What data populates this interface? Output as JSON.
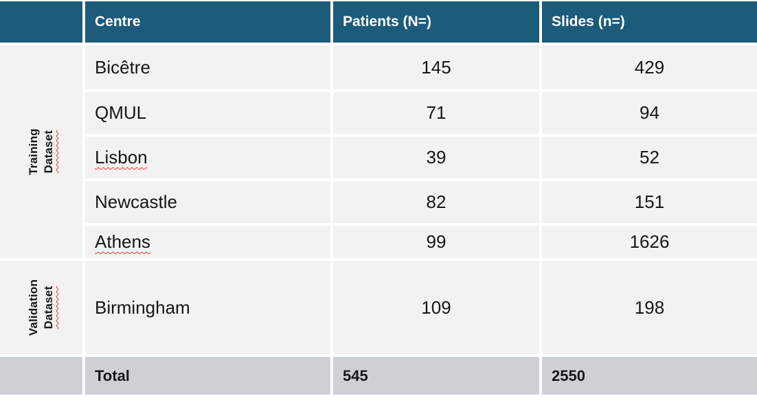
{
  "table": {
    "header": {
      "centre": "Centre",
      "patients": "Patients (N=)",
      "slides": "Slides (n=)"
    },
    "sections": {
      "training": {
        "line1": "Training",
        "line2": "Dataset"
      },
      "validation": {
        "line1": "Validation",
        "line2": "Dataset"
      }
    },
    "rows": [
      {
        "centre": "Bicêtre",
        "patients": "145",
        "slides": "429"
      },
      {
        "centre": "QMUL",
        "patients": "71",
        "slides": "94"
      },
      {
        "centre": "Lisbon",
        "patients": "39",
        "slides": "52"
      },
      {
        "centre": "Newcastle",
        "patients": "82",
        "slides": "151"
      },
      {
        "centre": "Athens",
        "patients": "99",
        "slides": "1626"
      },
      {
        "centre": "Birmingham",
        "patients": "109",
        "slides": "198"
      }
    ],
    "total": {
      "label": "Total",
      "patients": "545",
      "slides": "2550"
    }
  },
  "colors": {
    "header_bg": "#1C5B7A",
    "header_text": "#FFFFFF",
    "cell_bg": "#F2F2F2",
    "total_row_bg": "#CDD1D5",
    "spellcheck_underline": "#E03C2D",
    "body_text": "#161616"
  },
  "chart_data": {
    "type": "table",
    "title": "",
    "columns": [
      "",
      "Centre",
      "Patients (N=)",
      "Slides (n=)"
    ],
    "row_groups": [
      {
        "group": "Training Dataset",
        "rows": [
          [
            "Bicêtre",
            145,
            429
          ],
          [
            "QMUL",
            71,
            94
          ],
          [
            "Lisbon",
            39,
            52
          ],
          [
            "Newcastle",
            82,
            151
          ],
          [
            "Athens",
            99,
            1626
          ]
        ]
      },
      {
        "group": "Validation Dataset",
        "rows": [
          [
            "Birmingham",
            109,
            198
          ]
        ]
      }
    ],
    "total": [
      "Total",
      545,
      2550
    ],
    "layout_hints": {
      "header_style": "dark-teal band, white bold text",
      "total_style": "gray band, bold text, left-aligned numbers",
      "group_labels": "rotated 90deg CCW in first column",
      "spellcheck_marks_on": [
        "Lisbon",
        "Athens",
        "Dataset (both group labels)"
      ]
    }
  }
}
